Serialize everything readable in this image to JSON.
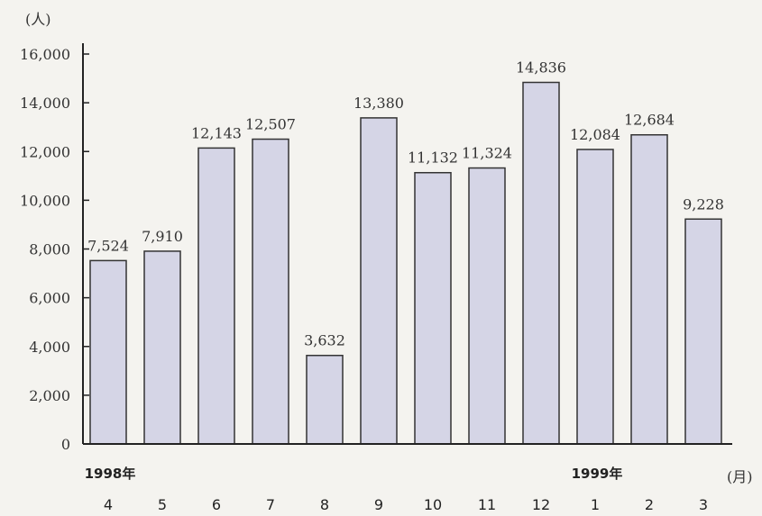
{
  "chart_data": {
    "type": "bar",
    "categories": [
      "4",
      "5",
      "6",
      "7",
      "8",
      "9",
      "10",
      "11",
      "12",
      "1",
      "2",
      "3"
    ],
    "values": [
      7524,
      7910,
      12143,
      12507,
      3632,
      13380,
      11132,
      11324,
      14836,
      12084,
      12684,
      9228
    ],
    "value_labels": [
      "7,524",
      "7,910",
      "12,143",
      "12,507",
      "3,632",
      "13,380",
      "11,132",
      "11,324",
      "14,836",
      "12,084",
      "12,684",
      "9,228"
    ],
    "year_labels": [
      {
        "text": "1998年",
        "category_index": 0
      },
      {
        "text": "1999年",
        "category_index": 9
      }
    ],
    "yticks": [
      0,
      2000,
      4000,
      6000,
      8000,
      10000,
      12000,
      14000,
      16000
    ],
    "ytick_labels": [
      "0",
      "2,000",
      "4,000",
      "6,000",
      "8,000",
      "10,000",
      "12,000",
      "14,000",
      "16,000"
    ],
    "ylim": [
      0,
      16000
    ],
    "y_unit": "(人)",
    "x_unit": "(月)",
    "bar_color": "#d5d5e6",
    "bar_edge": "#333333",
    "grid": false,
    "legend": "none"
  }
}
